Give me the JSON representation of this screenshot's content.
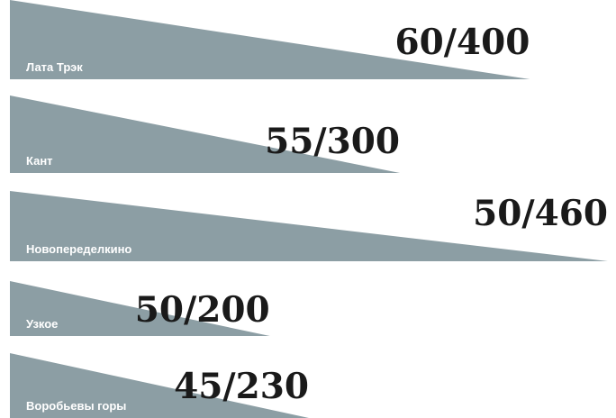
{
  "chart_data": {
    "type": "bar",
    "categories": [
      "Лата Трэк",
      "Кант",
      "Новопеределкино",
      "Узкое",
      "Воробьевы горы"
    ],
    "series": [
      {
        "values": [
          60,
          55,
          50,
          50,
          45
        ]
      },
      {
        "values": [
          400,
          300,
          460,
          200,
          230
        ]
      }
    ],
    "labels": [
      "60/400",
      "55/300",
      "50/460",
      "50/200",
      "45/230"
    ],
    "colors": {
      "wedge": "#8c9ea4",
      "category_text": "#ffffff",
      "value_text": "#1a1a1a"
    }
  }
}
